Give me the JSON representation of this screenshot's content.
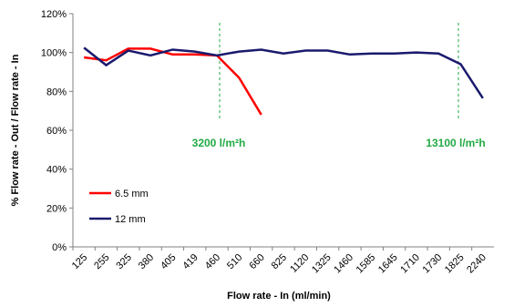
{
  "chart_data": {
    "type": "line",
    "x_label": "Flow rate - In  (ml/min)",
    "y_label": "% Flow rate - Out / Flow rate - In",
    "categories": [
      "125",
      "255",
      "325",
      "380",
      "405",
      "419",
      "460",
      "510",
      "660",
      "825",
      "1120",
      "1325",
      "1460",
      "1585",
      "1645",
      "1710",
      "1730",
      "1825",
      "2240"
    ],
    "series": [
      {
        "name": "6.5 mm",
        "color": "#ff0000",
        "values": [
          97.5,
          96,
          102,
          102,
          99,
          99,
          98.5,
          87,
          68,
          null,
          null,
          null,
          null,
          null,
          null,
          null,
          null,
          null,
          null
        ]
      },
      {
        "name": "12 mm",
        "color": "#1a1a6e",
        "values": [
          102.5,
          93.5,
          101,
          98.5,
          101.5,
          100.5,
          98.5,
          100.5,
          101.5,
          99.5,
          101,
          101,
          99,
          99.5,
          99.5,
          100,
          99.5,
          94,
          76.5
        ]
      }
    ],
    "annotations": [
      "3200 l/m²h",
      "13100 l/m²h"
    ],
    "annotation_color": "#22aa44",
    "ylim": [
      0,
      120
    ],
    "yticks": [
      {
        "value": 0,
        "label": "0%"
      },
      {
        "value": 20,
        "label": "20%"
      },
      {
        "value": 40,
        "label": "40%"
      },
      {
        "value": 60,
        "label": "60%"
      },
      {
        "value": 80,
        "label": "80%"
      },
      {
        "value": 100,
        "label": "100%"
      },
      {
        "value": 120,
        "label": "120%"
      }
    ],
    "legend": "lower-left"
  }
}
